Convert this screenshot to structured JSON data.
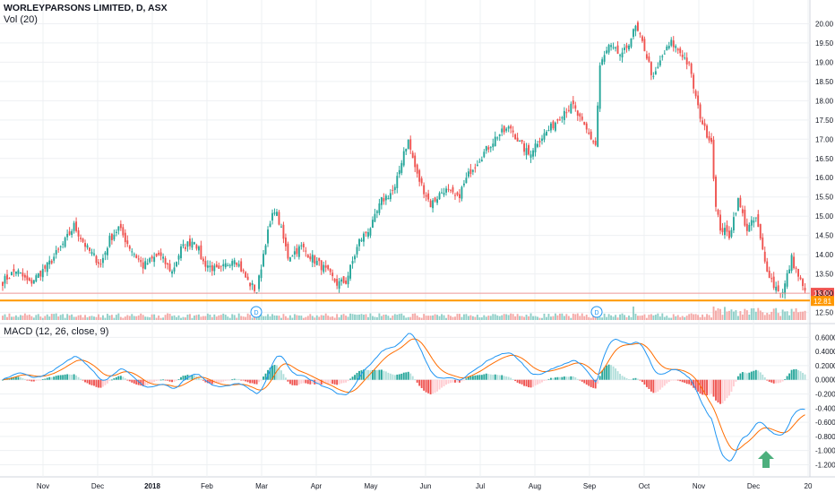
{
  "header": {
    "title": "WORLEYPARSONS LIMITED, D, ASX",
    "volume_label": "Vol (20)",
    "macd_label": "MACD (12, 26, close, 9)"
  },
  "colors": {
    "up": "#26a69a",
    "down": "#ef5350",
    "vol_up": "#8fcfc8",
    "vol_down": "#f4a8a6",
    "macd_line": "#2196f3",
    "signal_line": "#ff6d00",
    "hist_up_strong": "#26a69a",
    "hist_up_weak": "#b2dfdb",
    "hist_down_strong": "#ef5350",
    "hist_down_weak": "#ffcdd2",
    "support_line": "#ff9800",
    "price_line": "#ef9a9a",
    "arrow": "#4caf7d",
    "grid": "#eef0f3"
  },
  "chart_data": [
    {
      "type": "candlestick",
      "panel": "price",
      "title": "WORLEYPARSONS LIMITED, D, ASX",
      "y_ticks": [
        "12.50",
        "13.00",
        "13.50",
        "14.00",
        "14.50",
        "15.00",
        "15.50",
        "16.00",
        "16.50",
        "17.00",
        "17.50",
        "18.00",
        "18.50",
        "19.00",
        "19.50",
        "20.00"
      ],
      "ylim": [
        12.42,
        20.15
      ],
      "x_ticks": [
        "Nov",
        "Dec",
        "2018",
        "Feb",
        "Mar",
        "Apr",
        "May",
        "Jun",
        "Jul",
        "Aug",
        "Sep",
        "Oct",
        "Nov",
        "Dec",
        "20"
      ],
      "last_price": 13.0,
      "last_price_label": "13.00",
      "support_level": 12.81,
      "support_label": "12.81",
      "dividend_markers": [
        {
          "label": "D",
          "date": "Feb 2018"
        },
        {
          "label": "D",
          "date": "Aug 2018"
        }
      ],
      "price_path": [
        [
          0,
          13.3
        ],
        [
          6,
          13.6
        ],
        [
          12,
          13.25
        ],
        [
          20,
          13.7
        ],
        [
          28,
          14.35
        ],
        [
          32,
          14.75
        ],
        [
          38,
          14.15
        ],
        [
          44,
          13.75
        ],
        [
          48,
          14.4
        ],
        [
          52,
          14.7
        ],
        [
          57,
          14.2
        ],
        [
          63,
          13.7
        ],
        [
          70,
          14.0
        ],
        [
          76,
          13.55
        ],
        [
          80,
          14.15
        ],
        [
          86,
          14.4
        ],
        [
          90,
          13.8
        ],
        [
          97,
          13.55
        ],
        [
          104,
          13.95
        ],
        [
          110,
          13.3
        ],
        [
          114,
          13.05
        ],
        [
          118,
          14.35
        ],
        [
          122,
          15.2
        ],
        [
          124,
          14.85
        ],
        [
          128,
          13.95
        ],
        [
          134,
          14.2
        ],
        [
          140,
          13.85
        ],
        [
          144,
          13.65
        ],
        [
          150,
          13.25
        ],
        [
          154,
          13.3
        ],
        [
          160,
          14.35
        ],
        [
          166,
          14.8
        ],
        [
          170,
          15.4
        ],
        [
          176,
          15.7
        ],
        [
          180,
          16.7
        ],
        [
          182,
          16.95
        ],
        [
          186,
          16.05
        ],
        [
          192,
          15.3
        ],
        [
          198,
          15.7
        ],
        [
          204,
          15.45
        ],
        [
          210,
          16.2
        ],
        [
          216,
          16.65
        ],
        [
          222,
          17.1
        ],
        [
          228,
          17.3
        ],
        [
          232,
          16.9
        ],
        [
          236,
          16.6
        ],
        [
          240,
          16.95
        ],
        [
          246,
          17.3
        ],
        [
          252,
          17.75
        ],
        [
          256,
          17.85
        ],
        [
          260,
          17.4
        ],
        [
          266,
          16.85
        ],
        [
          268,
          18.9
        ],
        [
          272,
          19.4
        ],
        [
          278,
          19.15
        ],
        [
          284,
          19.9
        ],
        [
          288,
          19.35
        ],
        [
          292,
          18.55
        ],
        [
          296,
          19.15
        ],
        [
          300,
          19.5
        ],
        [
          305,
          19.2
        ],
        [
          308,
          18.9
        ],
        [
          312,
          17.8
        ],
        [
          315,
          17.25
        ],
        [
          318,
          16.95
        ],
        [
          320,
          15.2
        ],
        [
          322,
          14.7
        ],
        [
          326,
          14.5
        ],
        [
          330,
          15.4
        ],
        [
          334,
          14.65
        ],
        [
          338,
          14.95
        ],
        [
          342,
          13.8
        ],
        [
          346,
          13.2
        ],
        [
          350,
          13.0
        ],
        [
          354,
          13.9
        ],
        [
          357,
          13.45
        ],
        [
          360,
          13.0
        ]
      ]
    },
    {
      "type": "bar",
      "panel": "volume",
      "name": "Vol (20)",
      "note": "relative daily volume, 0..1"
    },
    {
      "type": "line",
      "panel": "macd",
      "title": "MACD (12, 26, close, 9)",
      "y_ticks": [
        "-1.2000",
        "-1.0000",
        "-0.8000",
        "-0.6000",
        "-0.4000",
        "-0.2000",
        "0.0000",
        "0.2000",
        "0.4000",
        "0.6000"
      ],
      "ylim": [
        -1.27,
        0.68
      ],
      "series": [
        {
          "name": "MACD",
          "color": "#2196f3"
        },
        {
          "name": "Signal",
          "color": "#ff6d00"
        },
        {
          "name": "Histogram",
          "type": "bar"
        }
      ]
    }
  ],
  "annotations": {
    "arrow": "up-arrow-icon"
  }
}
